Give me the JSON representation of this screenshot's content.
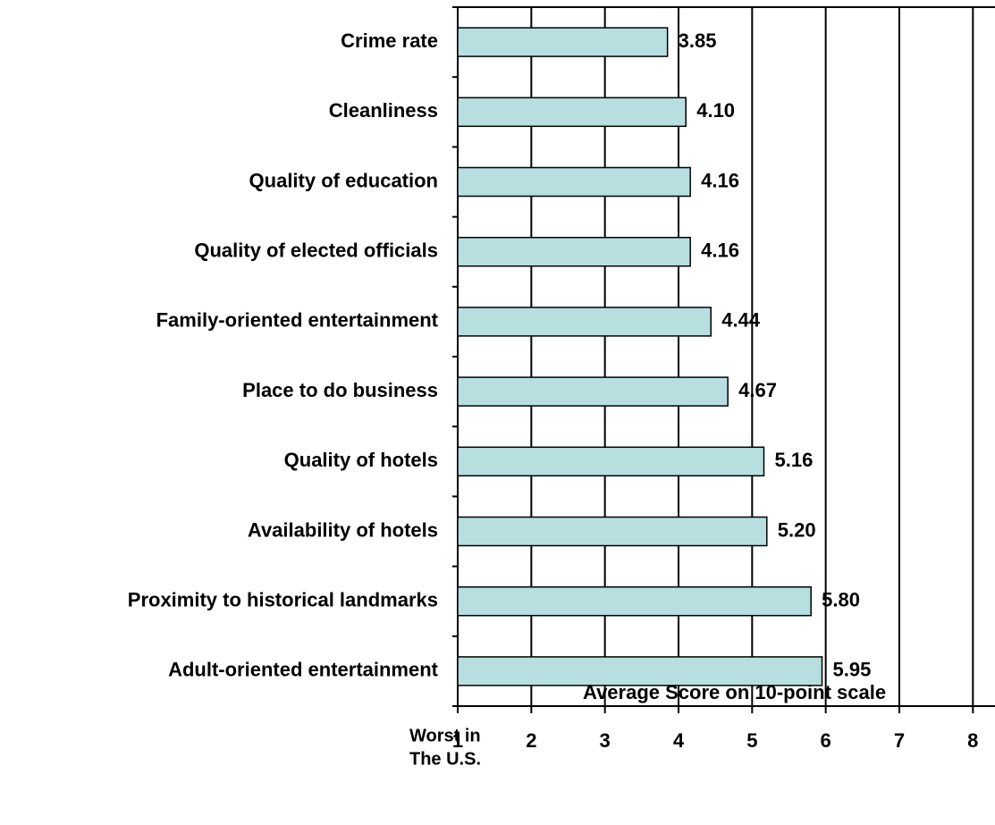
{
  "chart_data": {
    "type": "bar",
    "orientation": "horizontal",
    "categories": [
      "Crime rate",
      "Cleanliness",
      "Quality of education",
      "Quality of elected officials",
      "Family-oriented entertainment",
      "Place to do business",
      "Quality of hotels",
      "Availability of hotels",
      "Proximity to historical landmarks",
      "Adult-oriented entertainment"
    ],
    "values": [
      3.85,
      4.1,
      4.16,
      4.16,
      4.44,
      4.67,
      5.16,
      5.2,
      5.8,
      5.95
    ],
    "value_labels": [
      "3.85",
      "4.10",
      "4.16",
      "4.16",
      "4.44",
      "4.67",
      "5.16",
      "5.20",
      "5.80",
      "5.95"
    ],
    "color": "#b7dfe0",
    "xlim": [
      1,
      8.3
    ],
    "xticks": [
      1,
      2,
      3,
      4,
      5,
      6,
      7,
      8
    ],
    "grid": true,
    "x_label": "Average Score on 10-point scale",
    "annotation": [
      "Worst in",
      "The U.S."
    ]
  }
}
